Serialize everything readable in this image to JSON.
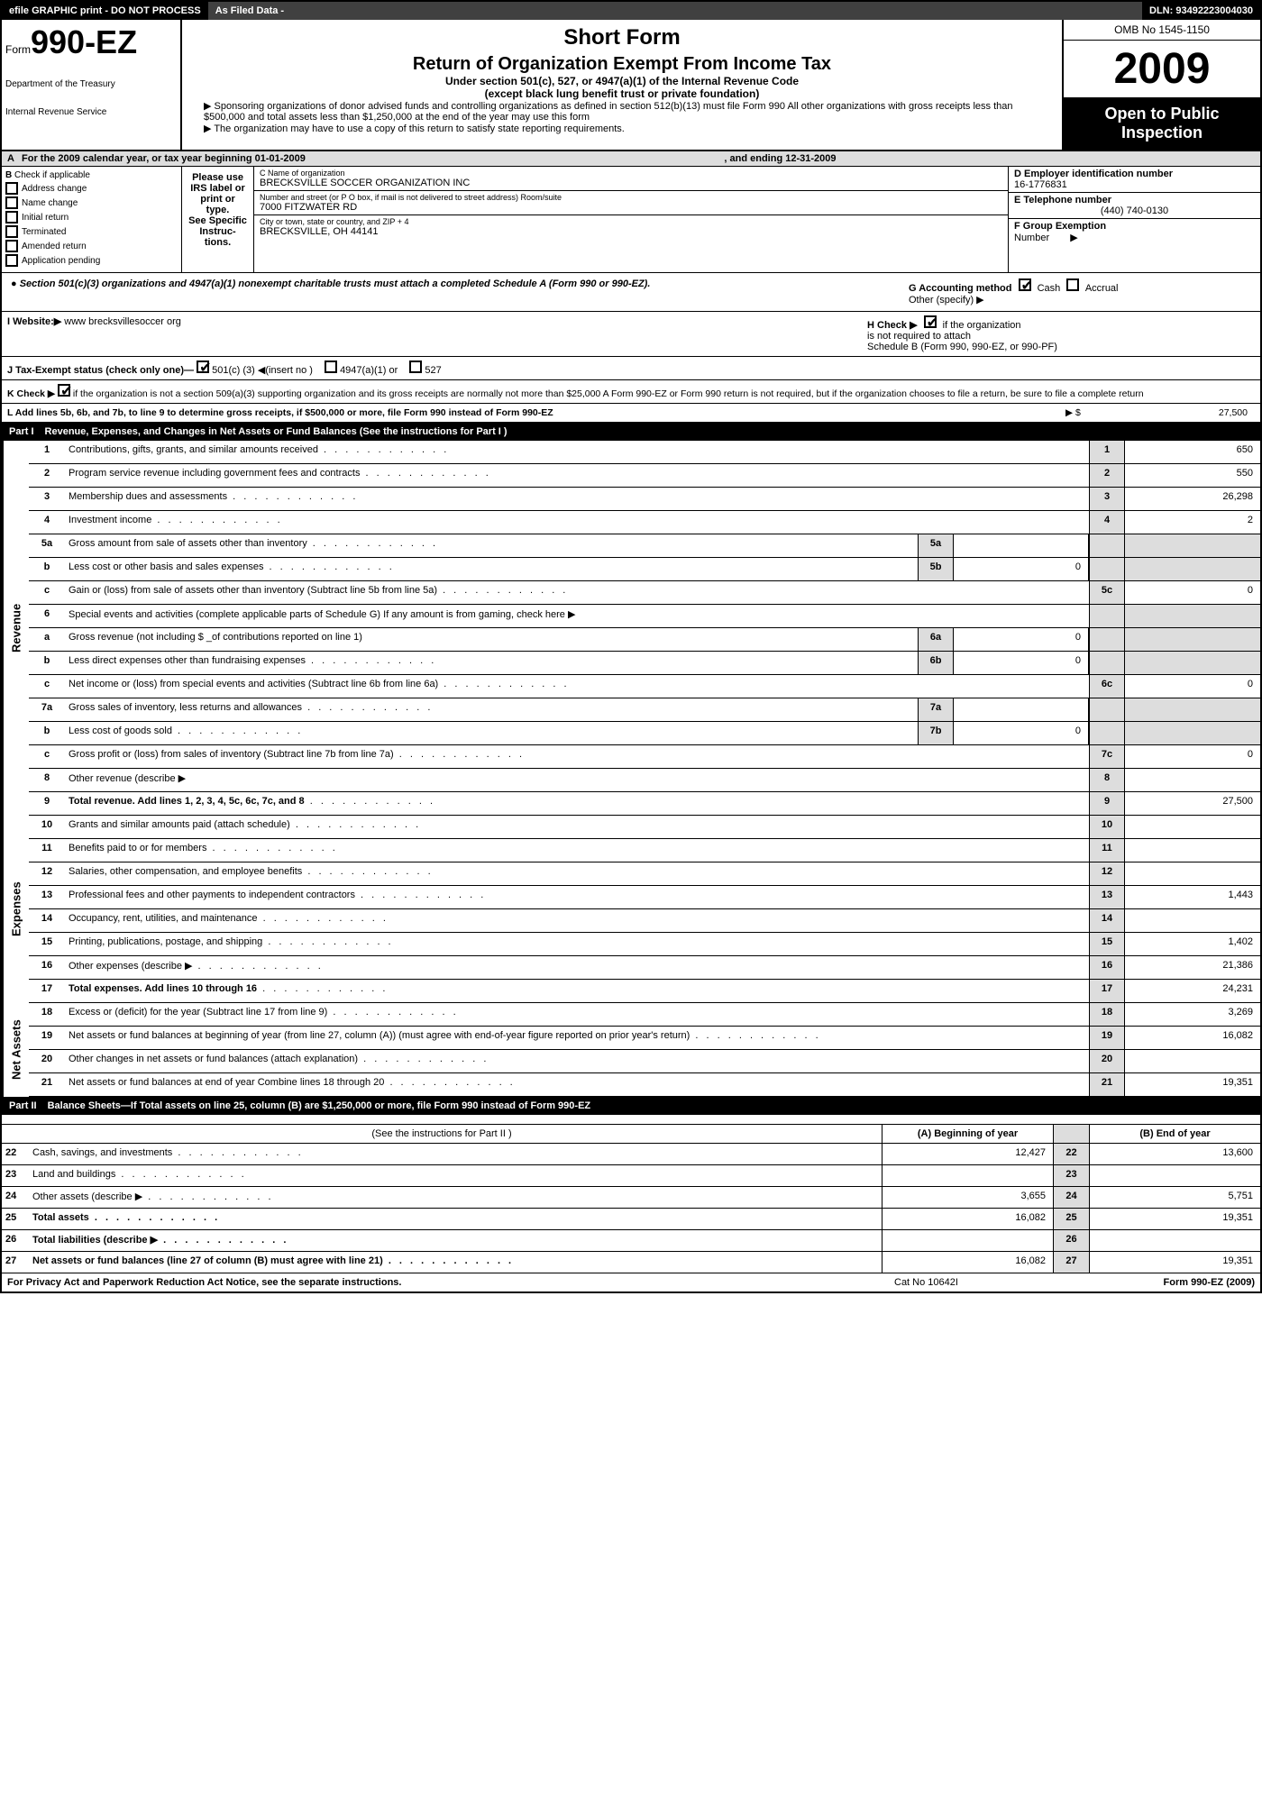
{
  "top": {
    "efile": "efile GRAPHIC print - DO NOT PROCESS",
    "filed": "As Filed Data -",
    "dln": "DLN: 93492223004030"
  },
  "header": {
    "form_prefix": "Form",
    "form_no": "990-EZ",
    "short": "Short Form",
    "title": "Return of Organization Exempt From Income Tax",
    "sub1": "Under section 501(c), 527, or 4947(a)(1) of the Internal Revenue Code",
    "sub2": "(except black lung benefit trust or private foundation)",
    "sponsor1": "▶ Sponsoring organizations of donor advised funds and controlling organizations as defined in section 512(b)(13) must file Form 990 All other organizations with gross receipts less than $500,000 and total assets less than $1,250,000 at the end of the year may use this form",
    "sponsor2": "▶ The organization may have to use a copy of this return to satisfy state reporting requirements.",
    "dept1": "Department of the Treasury",
    "dept2": "Internal Revenue Service",
    "omb": "OMB No 1545-1150",
    "year": "2009",
    "open1": "Open to Public",
    "open2": "Inspection"
  },
  "rowA": {
    "label": "A",
    "text": "For the 2009 calendar year, or tax year beginning 01-01-2009",
    "ending": ", and ending 12-31-2009"
  },
  "colB": {
    "label": "B",
    "hdr": "Check if applicable",
    "c1": "Address change",
    "c2": "Name change",
    "c3": "Initial return",
    "c4": "Terminated",
    "c5": "Amended return",
    "c6": "Application pending"
  },
  "please": {
    "l1": "Please use IRS label or print or type.",
    "l2": "See Specific Instruc-tions."
  },
  "nameCol": {
    "c_lbl": "C Name of organization",
    "c_val": "BRECKSVILLE SOCCER ORGANIZATION INC",
    "addr_lbl": "Number and street (or P O box, if mail is not delivered to street address) Room/suite",
    "addr_val": "7000 FITZWATER RD",
    "city_lbl": "City or town, state or country, and ZIP + 4",
    "city_val": "BRECKSVILLE, OH 44141"
  },
  "rightCol": {
    "d_lbl": "D Employer identification number",
    "d_val": "16-1776831",
    "e_lbl": "E Telephone number",
    "e_val": "(440) 740-0130",
    "f_lbl": "F Group Exemption",
    "f_lbl2": "Number",
    "f_arrow": "▶"
  },
  "sec501": {
    "bullet": "● Section 501(c)(3) organizations and 4947(a)(1) nonexempt charitable trusts must attach a completed Schedule A (Form 990 or 990-EZ).",
    "g_lbl": "G Accounting method",
    "g_cash": "Cash",
    "g_accrual": "Accrual",
    "g_other": "Other (specify) ▶"
  },
  "web": {
    "i_lbl": "I Website:▶",
    "i_val": "www brecksvillesoccer org",
    "h_lbl": "H  Check ▶",
    "h_txt1": "if the organization",
    "h_txt2": "is not required to attach",
    "h_txt3": "Schedule B (Form 990, 990-EZ, or 990-PF)"
  },
  "status": {
    "j_lbl": "J Tax-Exempt status (check only one)—",
    "j_501": "501(c) (3) ◀(insert no )",
    "j_4947": "4947(a)(1) or",
    "j_527": "527"
  },
  "k": {
    "text": "K Check ▶",
    "body": "if the organization is not a section 509(a)(3) supporting organization and its gross receipts are normally not more than $25,000  A Form 990-EZ or Form 990 return is not required, but if the organization chooses to file a return, be sure to file a complete return"
  },
  "l": {
    "text": "L Add lines 5b, 6b, and 7b, to line 9 to determine gross receipts, if $500,000 or more, file Form 990 instead of Form 990-EZ",
    "arrow": "▶ $",
    "val": "27,500"
  },
  "part1": {
    "lbl": "Part I",
    "txt": "Revenue, Expenses, and Changes in Net Assets or Fund Balances (See the instructions for Part I )"
  },
  "revenue_lbl": "Revenue",
  "expenses_lbl": "Expenses",
  "netassets_lbl": "Net Assets",
  "lines": {
    "1": {
      "n": "1",
      "d": "Contributions, gifts, grants, and similar amounts received",
      "en": "1",
      "ev": "650"
    },
    "2": {
      "n": "2",
      "d": "Program service revenue including government fees and contracts",
      "en": "2",
      "ev": "550"
    },
    "3": {
      "n": "3",
      "d": "Membership dues and assessments",
      "en": "3",
      "ev": "26,298"
    },
    "4": {
      "n": "4",
      "d": "Investment income",
      "en": "4",
      "ev": "2"
    },
    "5a": {
      "n": "5a",
      "d": "Gross amount from sale of assets other than inventory",
      "mn": "5a",
      "mv": ""
    },
    "5b": {
      "n": "b",
      "d": "Less cost or other basis and sales expenses",
      "mn": "5b",
      "mv": "0"
    },
    "5c": {
      "n": "c",
      "d": "Gain or (loss) from sale of assets other than inventory (Subtract line 5b from line 5a)",
      "en": "5c",
      "ev": "0"
    },
    "6": {
      "n": "6",
      "d": "Special events and activities (complete applicable parts of Schedule G)  If any amount is from gaming, check here ▶"
    },
    "6a": {
      "n": "a",
      "d": "Gross revenue (not including $ _of contributions reported on line 1)",
      "mn": "6a",
      "mv": "0"
    },
    "6b": {
      "n": "b",
      "d": "Less  direct expenses other than fundraising expenses",
      "mn": "6b",
      "mv": "0"
    },
    "6c": {
      "n": "c",
      "d": "Net income or (loss) from special events and activities (Subtract line 6b from line 6a)",
      "en": "6c",
      "ev": "0"
    },
    "7a": {
      "n": "7a",
      "d": "Gross sales of inventory, less returns and allowances",
      "mn": "7a",
      "mv": ""
    },
    "7b": {
      "n": "b",
      "d": "Less  cost of goods sold",
      "mn": "7b",
      "mv": "0"
    },
    "7c": {
      "n": "c",
      "d": "Gross profit or (loss) from sales of inventory (Subtract line 7b from line 7a)",
      "en": "7c",
      "ev": "0"
    },
    "8": {
      "n": "8",
      "d": "Other revenue (describe ▶",
      "en": "8",
      "ev": ""
    },
    "9": {
      "n": "9",
      "d": "Total revenue. Add lines 1, 2, 3, 4, 5c, 6c, 7c, and 8",
      "en": "9",
      "ev": "27,500"
    },
    "10": {
      "n": "10",
      "d": "Grants and similar amounts paid (attach schedule)",
      "en": "10",
      "ev": ""
    },
    "11": {
      "n": "11",
      "d": "Benefits paid to or for members",
      "en": "11",
      "ev": ""
    },
    "12": {
      "n": "12",
      "d": "Salaries, other compensation, and employee benefits",
      "en": "12",
      "ev": ""
    },
    "13": {
      "n": "13",
      "d": "Professional fees and other payments to independent contractors",
      "en": "13",
      "ev": "1,443"
    },
    "14": {
      "n": "14",
      "d": "Occupancy, rent, utilities, and maintenance",
      "en": "14",
      "ev": ""
    },
    "15": {
      "n": "15",
      "d": "Printing, publications, postage, and shipping",
      "en": "15",
      "ev": "1,402"
    },
    "16": {
      "n": "16",
      "d": "Other expenses (describe ▶",
      "en": "16",
      "ev": "21,386"
    },
    "17": {
      "n": "17",
      "d": "Total expenses. Add lines 10 through 16",
      "en": "17",
      "ev": "24,231"
    },
    "18": {
      "n": "18",
      "d": "Excess or (deficit) for the year (Subtract line 17 from line 9)",
      "en": "18",
      "ev": "3,269"
    },
    "19": {
      "n": "19",
      "d": "Net assets or fund balances at beginning of year (from line 27, column (A)) (must agree with end-of-year figure reported on prior year's return)",
      "en": "19",
      "ev": "16,082"
    },
    "20": {
      "n": "20",
      "d": "Other changes in net assets or fund balances (attach explanation)",
      "en": "20",
      "ev": ""
    },
    "21": {
      "n": "21",
      "d": "Net assets or fund balances at end of year  Combine lines 18 through 20",
      "en": "21",
      "ev": "19,351"
    }
  },
  "part2": {
    "lbl": "Part II",
    "txt": "Balance Sheets—If Total assets on line 25, column (B) are $1,250,000 or more, file Form 990 instead of Form 990-EZ",
    "instr": "(See the instructions for Part II )",
    "colA": "(A) Beginning of year",
    "colB": "(B) End of year"
  },
  "p2lines": {
    "22": {
      "n": "22",
      "d": "Cash, savings, and investments",
      "a": "12,427",
      "b": "13,600"
    },
    "23": {
      "n": "23",
      "d": "Land and buildings",
      "a": "",
      "b": ""
    },
    "24": {
      "n": "24",
      "d": "Other assets (describe ▶",
      "a": "3,655",
      "b": "5,751"
    },
    "25": {
      "n": "25",
      "d": "Total assets",
      "a": "16,082",
      "b": "19,351"
    },
    "26": {
      "n": "26",
      "d": "Total liabilities (describe ▶",
      "a": "",
      "b": ""
    },
    "27": {
      "n": "27",
      "d": "Net assets or fund balances (line 27 of column (B) must agree with line 21)",
      "a": "16,082",
      "b": "19,351"
    }
  },
  "footer": {
    "privacy": "For Privacy Act and Paperwork Reduction Act Notice, see the separate instructions.",
    "cat": "Cat No 10642I",
    "form": "Form 990-EZ (2009)"
  }
}
